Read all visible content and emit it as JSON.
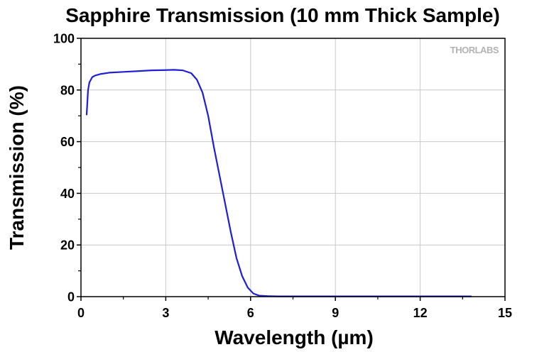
{
  "chart_data": {
    "type": "line",
    "title": "Sapphire Transmission (10 mm Thick Sample)",
    "xlabel": "Wavelength (µm)",
    "ylabel": "Transmission (%)",
    "xlim": [
      0,
      15
    ],
    "ylim": [
      0,
      100
    ],
    "xticks": [
      0,
      3,
      6,
      9,
      12,
      15
    ],
    "yticks": [
      0,
      20,
      40,
      60,
      80,
      100
    ],
    "grid": true,
    "series_color": "#1f1fd6",
    "watermark": "THORLABS",
    "series": [
      {
        "x": [
          0.2,
          0.22,
          0.25,
          0.3,
          0.4,
          0.5,
          0.7,
          1.0,
          1.5,
          2.0,
          2.5,
          3.0,
          3.3,
          3.6,
          3.9,
          4.1,
          4.3,
          4.5,
          4.7,
          4.9,
          5.1,
          5.3,
          5.5,
          5.7,
          5.9,
          6.1,
          6.3,
          6.6,
          7,
          8,
          9,
          10,
          11,
          12,
          13,
          13.8
        ],
        "y": [
          70.5,
          74,
          80,
          83,
          85,
          85.6,
          86.2,
          86.7,
          87,
          87.3,
          87.6,
          87.7,
          87.8,
          87.6,
          86.5,
          84,
          79,
          70,
          58,
          47,
          36,
          25,
          15,
          8,
          3.5,
          1.2,
          0.4,
          0.2,
          0.1,
          0.1,
          0.1,
          0.1,
          0.1,
          0.1,
          0.1,
          0.1
        ]
      }
    ]
  }
}
